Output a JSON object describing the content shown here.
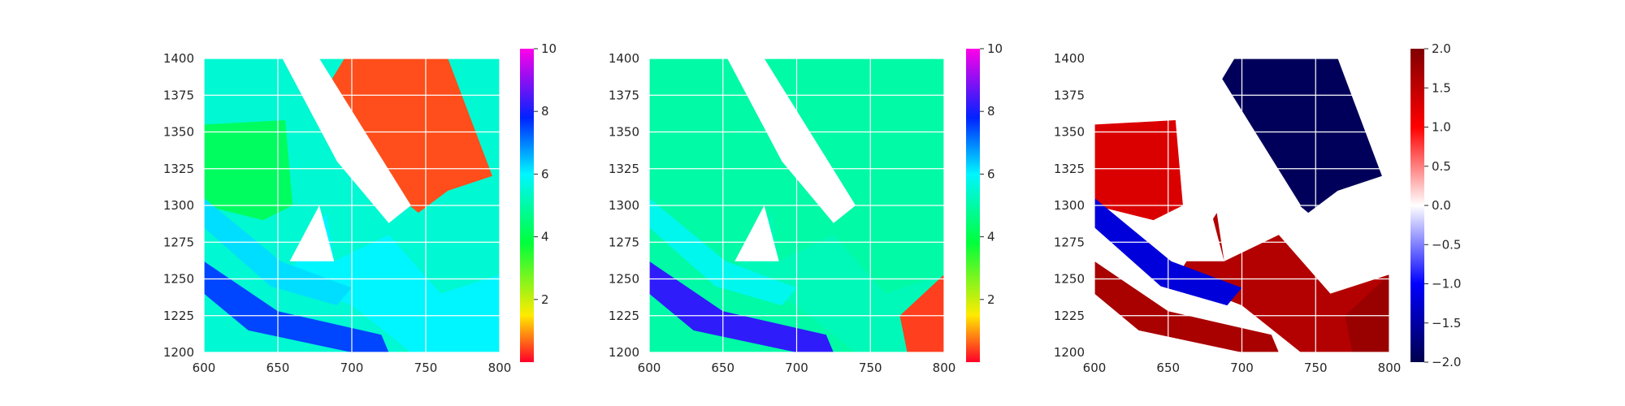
{
  "chart_data": [
    {
      "type": "heatmap",
      "title": "",
      "xlabel": "",
      "ylabel": "",
      "xlim": [
        600,
        800
      ],
      "ylim": [
        1200,
        1400
      ],
      "x_ticks": [
        600,
        650,
        700,
        750,
        800
      ],
      "y_ticks": [
        1200,
        1225,
        1250,
        1275,
        1300,
        1325,
        1350,
        1375,
        1400
      ],
      "x_tick_labels": [
        "600",
        "650",
        "700",
        "750",
        "800"
      ],
      "y_tick_labels": [
        "1200",
        "1225",
        "1250",
        "1275",
        "1300",
        "1325",
        "1350",
        "1375",
        "1400"
      ],
      "grid": true,
      "colormap": "gist_rainbow",
      "colorbar": {
        "range": [
          0,
          10
        ],
        "ticks": [
          2,
          4,
          6,
          8,
          10
        ],
        "tick_labels": [
          "2",
          "4",
          "6",
          "8",
          "10"
        ]
      },
      "dominant_value_regions": {
        "bottom_left_channels": 7.5,
        "left_open_area": 4,
        "top_right_block": 0.5,
        "mid_band": 6
      }
    },
    {
      "type": "heatmap",
      "title": "",
      "xlabel": "",
      "ylabel": "",
      "xlim": [
        600,
        800
      ],
      "ylim": [
        1200,
        1400
      ],
      "x_ticks": [
        600,
        650,
        700,
        750,
        800
      ],
      "y_ticks": [
        1200,
        1225,
        1250,
        1275,
        1300,
        1325,
        1350,
        1375,
        1400
      ],
      "x_tick_labels": [
        "600",
        "650",
        "700",
        "750",
        "800"
      ],
      "y_tick_labels": [
        "1200",
        "1225",
        "1250",
        "1275",
        "1300",
        "1325",
        "1350",
        "1375",
        "1400"
      ],
      "grid": true,
      "colormap": "gist_rainbow",
      "colorbar": {
        "range": [
          0,
          10
        ],
        "ticks": [
          2,
          4,
          6,
          8,
          10
        ],
        "tick_labels": [
          "2",
          "4",
          "6",
          "8",
          "10"
        ]
      },
      "dominant_value_regions": {
        "most_area": 5,
        "bottom_left_channels": 8,
        "bottom_right_corner": 0.5,
        "top_right_block": 5
      }
    },
    {
      "type": "heatmap",
      "title": "",
      "xlabel": "",
      "ylabel": "",
      "xlim": [
        600,
        800
      ],
      "ylim": [
        1200,
        1400
      ],
      "x_ticks": [
        600,
        650,
        700,
        750,
        800
      ],
      "y_ticks": [
        1200,
        1225,
        1250,
        1275,
        1300,
        1325,
        1350,
        1375,
        1400
      ],
      "x_tick_labels": [
        "600",
        "650",
        "700",
        "750",
        "800"
      ],
      "y_tick_labels": [
        "1200",
        "1225",
        "1250",
        "1275",
        "1300",
        "1325",
        "1350",
        "1375",
        "1400"
      ],
      "grid": true,
      "colormap": "seismic",
      "colorbar": {
        "range": [
          -2,
          2
        ],
        "ticks": [
          -2,
          -1.5,
          -1,
          -0.5,
          0,
          0.5,
          1,
          1.5,
          2
        ],
        "tick_labels": [
          "−2.0",
          "−1.5",
          "−1.0",
          "−0.5",
          "0.0",
          "0.5",
          "1.0",
          "1.5",
          "2.0"
        ]
      },
      "dominant_value_regions": {
        "top_right_block": -2,
        "bottom_left": 2,
        "bottom_right": 2,
        "mid_left_band": -1.5
      }
    }
  ]
}
